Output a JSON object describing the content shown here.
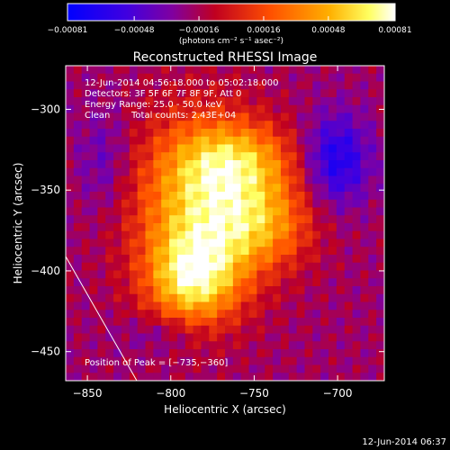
{
  "chart_data": {
    "type": "heatmap",
    "title": "Reconstructed RHESSI Image",
    "xlabel": "Heliocentric X (arcsec)",
    "ylabel": "Heliocentric Y (arcsec)",
    "xlim": [
      -863,
      -672
    ],
    "ylim": [
      -468,
      -273
    ],
    "x_ticks": [
      -850,
      -800,
      -750,
      -700
    ],
    "x_tick_labels": [
      "−850",
      "−800",
      "−750",
      "−700"
    ],
    "y_ticks": [
      -450,
      -400,
      -350,
      -300
    ],
    "y_tick_labels": [
      "−450",
      "−400",
      "−350",
      "−300"
    ],
    "colorbar": {
      "min": -0.00081,
      "max": 0.00081,
      "ticks": [
        -0.00081,
        -0.00048,
        -0.00016,
        0.00016,
        0.00048,
        0.00081
      ],
      "tick_labels": [
        "−0.00081",
        "−0.00048",
        "−0.00016",
        "0.00016",
        "0.00048",
        "0.00081"
      ],
      "unit_label": "(photons cm⁻² s⁻¹ asec⁻²)",
      "colors": [
        "#0000ff",
        "#6a00c8",
        "#c80000",
        "#ff8c00",
        "#ffff80",
        "#ffffff"
      ]
    },
    "annotations": {
      "time_range": "12-Jun-2014 04:56:18.000 to 05:02:18.000",
      "detectors": "Detectors: 3F 5F 6F 7F 8F 9F, Att 0",
      "energy_range": "Energy Range: 25.0 - 50.0 keV",
      "clean_label": "Clean",
      "total_counts": "Total counts: 2.43E+04",
      "peak": "Position of Peak = [−735,−360]"
    },
    "footer_timestamp": "12-Jun-2014 06:37"
  }
}
